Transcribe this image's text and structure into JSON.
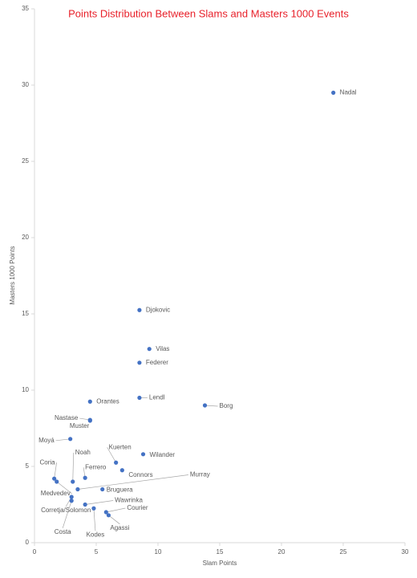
{
  "chart_data": {
    "type": "scatter",
    "title": "Points Distribution Between Slams and Masters 1000 Events",
    "x_label": "Slam Points",
    "y_label": "Masters 1000 Points",
    "labels": [
      "Nadal",
      "Djokovic",
      "Vilas",
      "Federer",
      "Lendl",
      "Borg",
      "Orantes",
      "Nastase",
      "Muster",
      "Moyá",
      "Kuerten",
      "Wilander",
      "Connors",
      "Ferrero",
      "Noah",
      "Coria",
      "Medvedev",
      "Murray",
      "Bruguera",
      "Wawrinka",
      "Corretja/Solomon",
      "Costa",
      "Kodes",
      "Courier",
      "Agassi"
    ],
    "x": [
      24.2,
      8.5,
      9.3,
      8.5,
      8.5,
      13.8,
      4.5,
      4.5,
      4.5,
      2.9,
      6.6,
      8.8,
      7.1,
      4.1,
      3.1,
      1.6,
      1.8,
      3.5,
      5.5,
      4.1,
      3.0,
      3.0,
      4.8,
      5.8,
      6.0
    ],
    "y": [
      29.5,
      15.25,
      12.7,
      11.8,
      9.5,
      9.0,
      9.25,
      8.05,
      8.0,
      6.8,
      5.25,
      5.8,
      4.75,
      4.25,
      4.0,
      4.2,
      4.0,
      3.5,
      3.5,
      2.5,
      3.0,
      2.75,
      2.25,
      2.0,
      1.8
    ],
    "color": "#4472c4",
    "xlim": [
      0,
      30
    ],
    "xticks": [
      0,
      5,
      10,
      15,
      20,
      25,
      30
    ],
    "ylim": [
      0,
      35
    ],
    "yticks": [
      0,
      5,
      10,
      15,
      20,
      25,
      30,
      35
    ],
    "grid": false
  }
}
